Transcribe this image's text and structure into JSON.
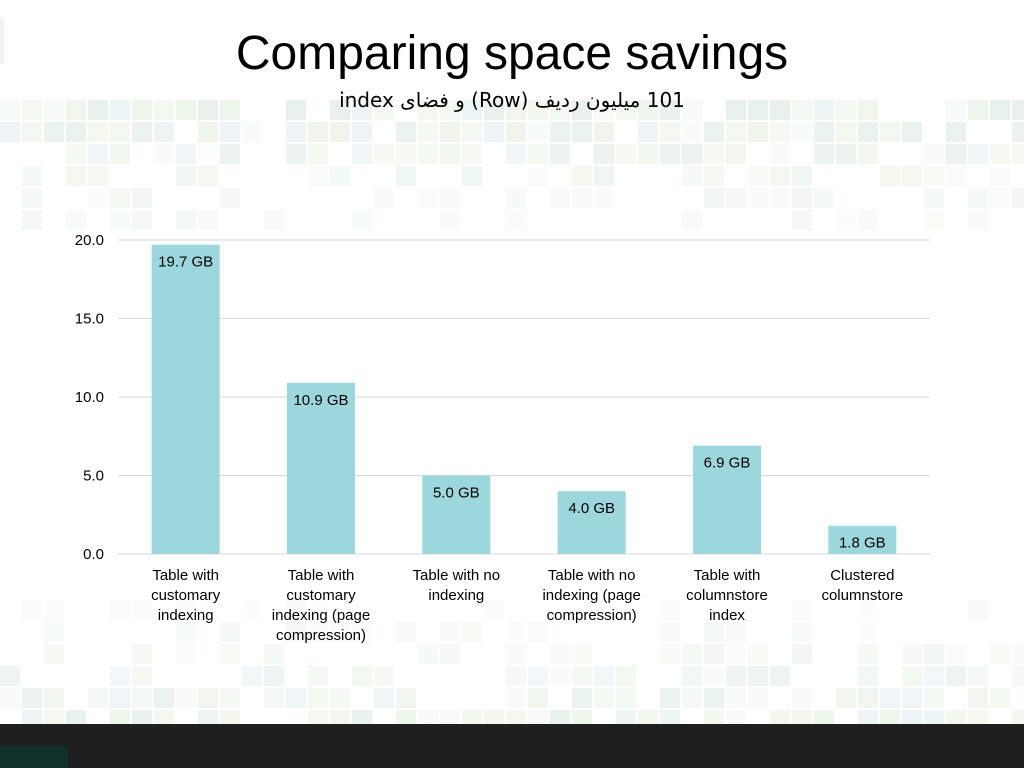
{
  "slide": {
    "title": "Comparing space savings",
    "subtitle": "101 میلیون ردیف (Row) و فضای index"
  },
  "colors": {
    "bar": "#9dd7de",
    "grid": "#d9d9d9",
    "axis_text": "#000000",
    "bottom_bar": "#1f1f1f"
  },
  "chart_data": {
    "type": "bar",
    "categories": [
      "Table with customary indexing",
      "Table with customary indexing (page compression)",
      "Table with no indexing",
      "Table with no indexing (page compression)",
      "Table with columnstore index",
      "Clustered columnstore"
    ],
    "category_lines": [
      [
        "Table with",
        "customary",
        "indexing"
      ],
      [
        "Table with",
        "customary",
        "indexing (page",
        "compression)"
      ],
      [
        "Table with no",
        "indexing"
      ],
      [
        "Table with no",
        "indexing (page",
        "compression)"
      ],
      [
        "Table with",
        "columnstore",
        "index"
      ],
      [
        "Clustered",
        "columnstore"
      ]
    ],
    "values": [
      19.7,
      10.9,
      5.0,
      4.0,
      6.9,
      1.8
    ],
    "data_labels": [
      "19.7 GB",
      "10.9 GB",
      "5.0 GB",
      "4.0 GB",
      "6.9 GB",
      "1.8 GB"
    ],
    "yticks": [
      "0.0",
      "5.0",
      "10.0",
      "15.0",
      "20.0"
    ],
    "ylim": [
      0,
      20
    ],
    "grid": true,
    "legend": "none"
  }
}
